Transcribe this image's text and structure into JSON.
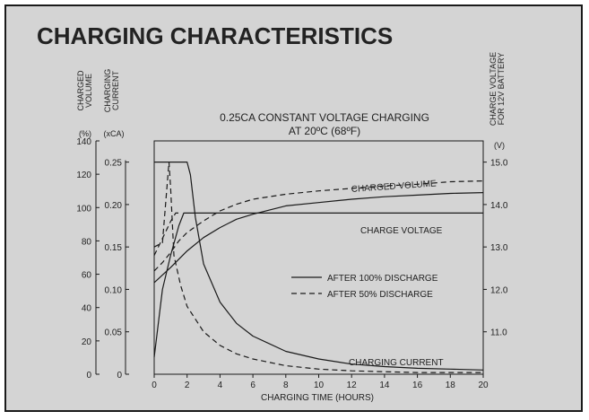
{
  "chart_data": {
    "type": "line",
    "title": "CHARGING CHARACTERISTICS",
    "subtitle_lines": [
      "0.25CA CONSTANT VOLTAGE CHARGING",
      "AT 20ºC (68ºF)"
    ],
    "xlabel": "CHARGING TIME (HOURS)",
    "xlim": [
      0,
      20
    ],
    "x_ticks": [
      "0",
      "2",
      "4",
      "6",
      "8",
      "10",
      "12",
      "14",
      "16",
      "18",
      "20"
    ],
    "axes": {
      "volume": {
        "label_lines": [
          "CHARGED",
          "VOLUME"
        ],
        "unit": "(%)",
        "lim": [
          0,
          140
        ],
        "ticks": [
          "0",
          "20",
          "40",
          "60",
          "80",
          "100",
          "120",
          "140"
        ]
      },
      "current": {
        "label_lines": [
          "CHARGING",
          "CURRENT"
        ],
        "unit": "(xCA)",
        "lim": [
          0,
          0.275
        ],
        "ticks": [
          "0",
          "0.05",
          "0.10",
          "0.15",
          "0.20",
          "0.25"
        ]
      },
      "voltage": {
        "label_lines": [
          "CHARGE VOLTAGE",
          "FOR 12V BATTERY"
        ],
        "unit": "(V)",
        "lim": [
          10.0,
          15.5
        ],
        "ticks": [
          "11.0",
          "12.0",
          "13.0",
          "14.0",
          "15.0"
        ]
      }
    },
    "legend": {
      "placement": "center-right",
      "entries": [
        {
          "label": "AFTER 100% DISCHARGE",
          "style": "solid"
        },
        {
          "label": "AFTER 50% DISCHARGE",
          "style": "dashed"
        }
      ]
    },
    "annotations": [
      "CHARGED VOLUME",
      "CHARGE VOLTAGE",
      "CHARGING CURRENT"
    ],
    "series": [
      {
        "curve": "charged_volume",
        "discharge": "100%",
        "style": "solid",
        "axis": "volume",
        "x": [
          0,
          1,
          2,
          3,
          4,
          5,
          6,
          8,
          10,
          12,
          14,
          16,
          18,
          20
        ],
        "y": [
          55,
          64,
          74,
          82,
          88,
          93,
          96,
          101,
          103,
          105,
          106.5,
          107.5,
          108.5,
          109
        ]
      },
      {
        "curve": "charged_volume",
        "discharge": "50%",
        "style": "dashed",
        "axis": "volume",
        "x": [
          0,
          0.5,
          1,
          1.5,
          2,
          3,
          4,
          5,
          6,
          8,
          10,
          12,
          14,
          16,
          18,
          20
        ],
        "y": [
          62,
          67,
          73,
          80,
          85,
          92,
          98,
          102,
          105,
          108,
          110,
          111.5,
          113,
          114,
          115.5,
          116
        ]
      },
      {
        "curve": "charge_voltage",
        "discharge": "100%",
        "style": "solid",
        "axis": "voltage",
        "x": [
          0,
          0.5,
          1,
          1.5,
          1.8,
          2.5,
          5,
          10,
          15,
          20
        ],
        "y": [
          10.4,
          12.0,
          12.8,
          13.5,
          13.8,
          13.8,
          13.8,
          13.8,
          13.8,
          13.8
        ]
      },
      {
        "curve": "charge_voltage",
        "discharge": "50%",
        "style": "dashed",
        "axis": "voltage",
        "x": [
          0,
          0.5,
          1.0,
          1.3,
          1.6
        ],
        "y": [
          12.8,
          13.2,
          13.6,
          13.8,
          13.8
        ]
      },
      {
        "curve": "charging_current",
        "discharge": "100%",
        "style": "solid",
        "axis": "current",
        "x": [
          0,
          2,
          2.2,
          2.5,
          3,
          4,
          5,
          6,
          8,
          10,
          12,
          14,
          16,
          18,
          20
        ],
        "y": [
          0.25,
          0.25,
          0.235,
          0.185,
          0.13,
          0.085,
          0.06,
          0.045,
          0.027,
          0.018,
          0.012,
          0.009,
          0.007,
          0.006,
          0.005
        ]
      },
      {
        "curve": "charging_current",
        "discharge": "50%",
        "style": "dashed",
        "axis": "current",
        "x": [
          0,
          0.5,
          0.9,
          1.0,
          1.2,
          1.6,
          2,
          3,
          4,
          5,
          6,
          8,
          10,
          12,
          14,
          16,
          18,
          20
        ],
        "y": [
          0.15,
          0.155,
          0.25,
          0.22,
          0.14,
          0.105,
          0.08,
          0.05,
          0.034,
          0.024,
          0.018,
          0.01,
          0.006,
          0.004,
          0.003,
          0.002,
          0.002,
          0.002
        ]
      }
    ]
  }
}
